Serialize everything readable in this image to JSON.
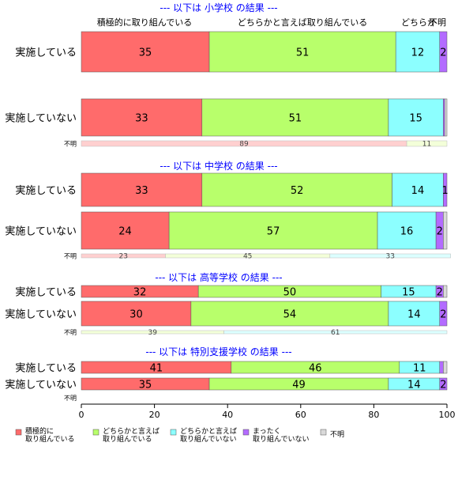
{
  "colors": {
    "c1": "#ff6b6b",
    "c2": "#b8ff6b",
    "c3": "#8cffff",
    "c4": "#b36bff",
    "c5": "#d9d9d9",
    "title": "#0000ff"
  },
  "chart_data": {
    "type": "bar",
    "orientation": "horizontal",
    "stacked": "percent",
    "categories": [
      "積極的に取り組んでいる",
      "どちらかと言えば取り組んでいる",
      "どちらかと言えば取り組んでいない",
      "まったく取り組んでいない",
      "不明"
    ],
    "column_headers": [
      "積極的に取り組んでいる",
      "どちらかと言えば取り組んでいる",
      "どちらか",
      "不明"
    ],
    "legend": [
      {
        "line1": "積極的に",
        "line2": "取り組んでいる",
        "color": "#ff6b6b"
      },
      {
        "line1": "どちらかと言えば",
        "line2": "取り組んでいる",
        "color": "#b8ff6b"
      },
      {
        "line1": "どちらかと言えば",
        "line2": "取り組んでいない",
        "color": "#8cffff"
      },
      {
        "line1": "まったく",
        "line2": "取り組んでいない",
        "color": "#b36bff"
      },
      {
        "line1": "不明",
        "line2": "",
        "color": "#d9d9d9"
      }
    ],
    "xlim": [
      0,
      100
    ],
    "xticks": [
      0,
      20,
      40,
      60,
      80,
      100
    ],
    "groups": [
      {
        "title": "--- 以下は 小学校 の結果 ---",
        "rows": [
          {
            "label": "実施している",
            "values": [
              35,
              51,
              12,
              2,
              0
            ],
            "labels": [
              "35",
              "51",
              "12",
              "2",
              ""
            ]
          },
          {
            "label": "実施していない",
            "values": [
              33,
              51,
              15,
              0.4,
              0.6
            ],
            "labels": [
              "33",
              "51",
              "15",
              "",
              ""
            ]
          }
        ],
        "unknown": {
          "label": "不明",
          "values": [
            89,
            11,
            0,
            0,
            0
          ],
          "labels": [
            "89",
            "11",
            "",
            "",
            ""
          ]
        }
      },
      {
        "title": "--- 以下は 中学校 の結果 ---",
        "rows": [
          {
            "label": "実施している",
            "values": [
              33,
              52,
              14,
              1,
              0
            ],
            "labels": [
              "33",
              "52",
              "14",
              "1",
              ""
            ]
          },
          {
            "label": "実施していない",
            "values": [
              24,
              57,
              16,
              2,
              1
            ],
            "labels": [
              "24",
              "57",
              "16",
              "2",
              ""
            ]
          }
        ],
        "unknown": {
          "label": "不明",
          "values": [
            23,
            45,
            33,
            0,
            0
          ],
          "labels": [
            "23",
            "45",
            "33",
            "",
            ""
          ]
        }
      },
      {
        "title": "--- 以下は 高等学校 の結果 ---",
        "rows": [
          {
            "label": "実施している",
            "values": [
              32,
              50,
              15,
              2,
              1
            ],
            "labels": [
              "32",
              "50",
              "15",
              "2",
              ""
            ]
          },
          {
            "label": "実施していない",
            "values": [
              30,
              54,
              14,
              2,
              0
            ],
            "labels": [
              "30",
              "54",
              "14",
              "2",
              ""
            ]
          }
        ],
        "unknown": {
          "label": "不明",
          "values": [
            0,
            39,
            61,
            0,
            0
          ],
          "labels": [
            "",
            "39",
            "61",
            "",
            ""
          ]
        }
      },
      {
        "title": "--- 以下は 特別支援学校 の結果 ---",
        "rows": [
          {
            "label": "実施している",
            "values": [
              41,
              46,
              11,
              1,
              1
            ],
            "labels": [
              "41",
              "46",
              "11",
              "",
              ""
            ]
          },
          {
            "label": "実施していない",
            "values": [
              35,
              49,
              14,
              2,
              0
            ],
            "labels": [
              "35",
              "49",
              "14",
              "2",
              ""
            ]
          }
        ],
        "unknown": {
          "label": "不明",
          "values": [
            0,
            0,
            0,
            0,
            0
          ],
          "labels": [
            "",
            "",
            "",
            "",
            ""
          ]
        }
      }
    ]
  }
}
